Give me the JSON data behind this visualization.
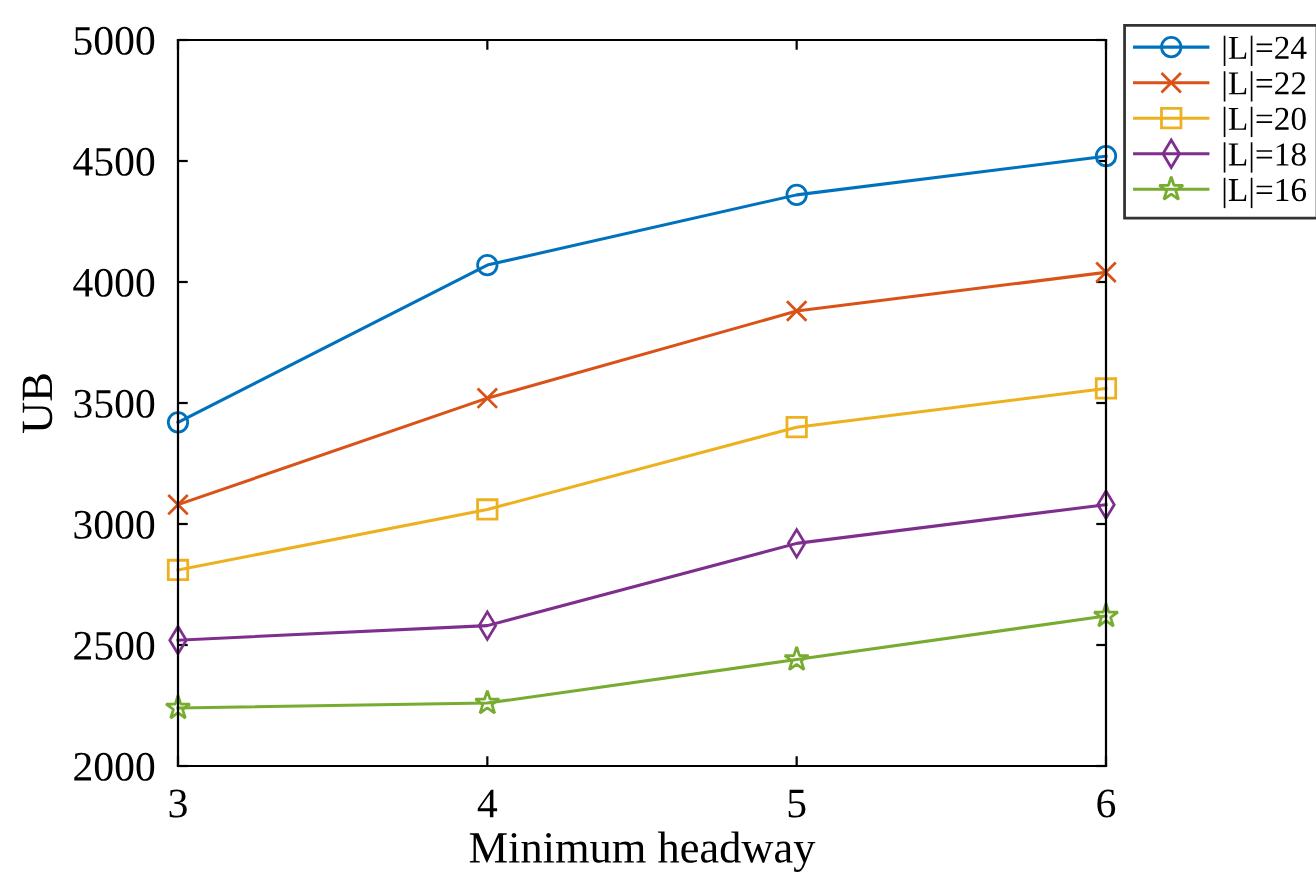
{
  "chart_data": {
    "type": "line",
    "xlabel": "Minimum headway",
    "ylabel": "UB",
    "x": [
      3,
      4,
      5,
      6
    ],
    "xlim": [
      3,
      6
    ],
    "xticks": [
      3,
      4,
      5,
      6
    ],
    "ylim": [
      2000,
      5000
    ],
    "yticks": [
      2000,
      2500,
      3000,
      3500,
      4000,
      4500,
      5000
    ],
    "grid": false,
    "legend": "top right",
    "line_style": "solid",
    "series": [
      {
        "name": "|L|=24",
        "color": "#0072bd",
        "marker": "circle",
        "values": [
          3420,
          4070,
          4360,
          4520
        ]
      },
      {
        "name": "|L|=22",
        "color": "#d95319",
        "marker": "cross",
        "values": [
          3080,
          3520,
          3880,
          4040
        ]
      },
      {
        "name": "|L|=20",
        "color": "#edb120",
        "marker": "square",
        "values": [
          2810,
          3060,
          3400,
          3560
        ]
      },
      {
        "name": "|L|=18",
        "color": "#7e2f8e",
        "marker": "diamond",
        "values": [
          2520,
          2580,
          2920,
          3080
        ]
      },
      {
        "name": "|L|=16",
        "color": "#77ac30",
        "marker": "star",
        "values": [
          2240,
          2260,
          2440,
          2620
        ]
      }
    ]
  }
}
